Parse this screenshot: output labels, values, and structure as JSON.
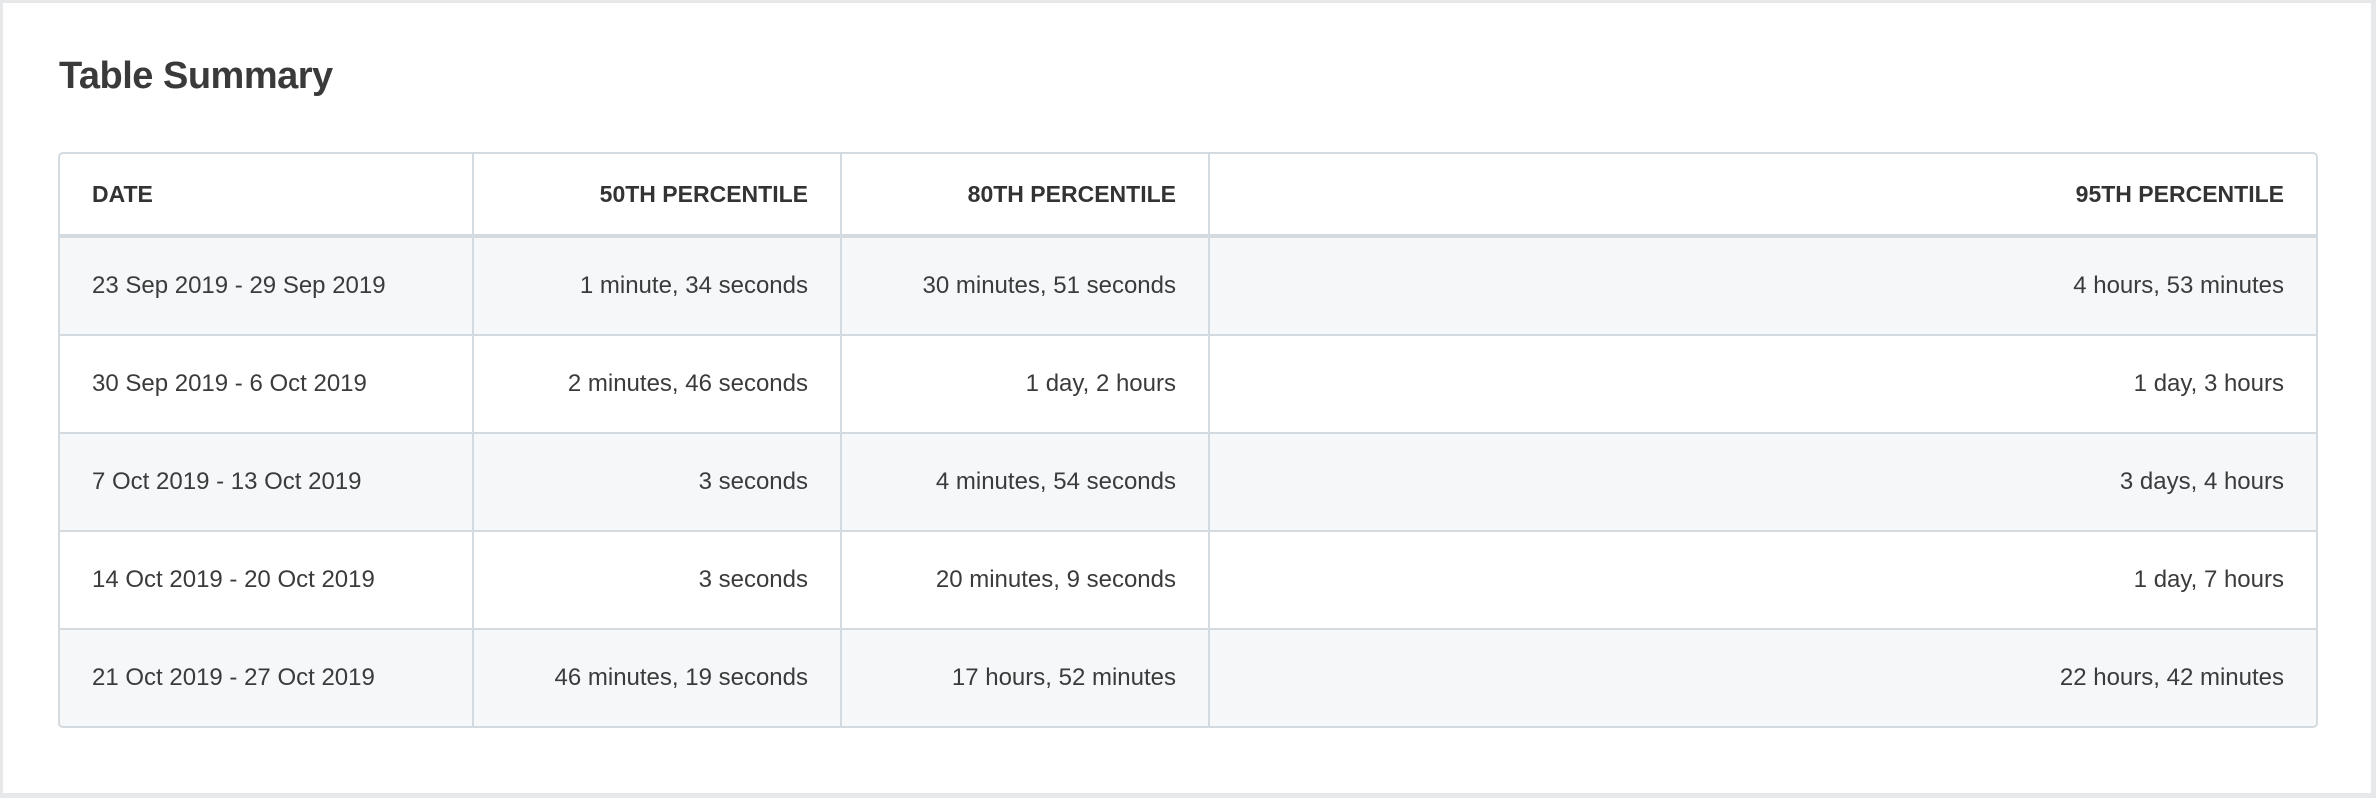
{
  "title": "Table Summary",
  "table": {
    "headers": [
      "DATE",
      "50TH PERCENTILE",
      "80TH PERCENTILE",
      "95TH PERCENTILE"
    ],
    "rows": [
      [
        "23 Sep 2019 - 29 Sep 2019",
        "1 minute, 34 seconds",
        "30 minutes, 51 seconds",
        "4 hours, 53 minutes"
      ],
      [
        "30 Sep 2019 - 6 Oct 2019",
        "2 minutes, 46 seconds",
        "1 day, 2 hours",
        "1 day, 3 hours"
      ],
      [
        "7 Oct 2019 - 13 Oct 2019",
        "3 seconds",
        "4 minutes, 54 seconds",
        "3 days, 4 hours"
      ],
      [
        "14 Oct 2019 - 20 Oct 2019",
        "3 seconds",
        "20 minutes, 9 seconds",
        "1 day, 7 hours"
      ],
      [
        "21 Oct 2019 - 27 Oct 2019",
        "46 minutes, 19 seconds",
        "17 hours, 52 minutes",
        "22 hours, 42 minutes"
      ]
    ]
  },
  "colors": {
    "text": "#3b3b3b",
    "border": "#d3dbe0",
    "stripe": "#f5f7f9"
  }
}
